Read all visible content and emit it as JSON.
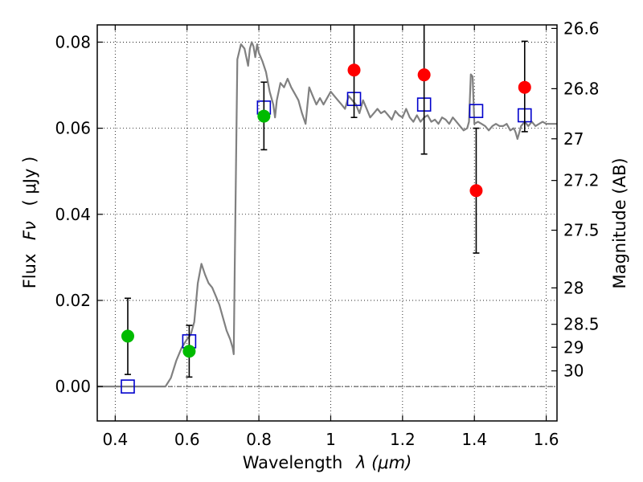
{
  "chart_data": {
    "type": "scatter",
    "xlabel_text": "Wavelength",
    "xlabel_math": "λ (μm)",
    "ylabel_text": "Flux",
    "ylabel_math": "Fν",
    "ylabel_unit": "( μJy )",
    "y2label": "Magnitude (AB)",
    "xlim": [
      0.35,
      1.63
    ],
    "ylim": [
      -0.008,
      0.084
    ],
    "x_ticks": [
      {
        "v": 0.4,
        "label": "0.4"
      },
      {
        "v": 0.6,
        "label": "0.6"
      },
      {
        "v": 0.8,
        "label": "0.8"
      },
      {
        "v": 1.0,
        "label": "1"
      },
      {
        "v": 1.2,
        "label": "1.2"
      },
      {
        "v": 1.4,
        "label": "1.4"
      },
      {
        "v": 1.6,
        "label": "1.6"
      }
    ],
    "y_ticks": [
      {
        "v": 0.0,
        "label": "0.00"
      },
      {
        "v": 0.02,
        "label": "0.02"
      },
      {
        "v": 0.04,
        "label": "0.04"
      },
      {
        "v": 0.06,
        "label": "0.06"
      },
      {
        "v": 0.08,
        "label": "0.08"
      }
    ],
    "mag_ticks": [
      {
        "mag": 26.6,
        "label": "26.6"
      },
      {
        "mag": 26.8,
        "label": "26.8"
      },
      {
        "mag": 27.0,
        "label": "27"
      },
      {
        "mag": 27.2,
        "label": "27.2"
      },
      {
        "mag": 27.5,
        "label": "27.5"
      },
      {
        "mag": 28.0,
        "label": "28"
      },
      {
        "mag": 28.5,
        "label": "28.5"
      },
      {
        "mag": 29.0,
        "label": "29"
      },
      {
        "mag": 30.0,
        "label": "30"
      }
    ],
    "grid": true,
    "colors": {
      "model": "#808080",
      "model_photometry": "#0000cc",
      "optical_points": "#00bb00",
      "nir_points": "#ff0000",
      "errorbar": "#000000"
    },
    "model_spectrum": [
      [
        0.35,
        0.0
      ],
      [
        0.54,
        0.0
      ],
      [
        0.555,
        0.002
      ],
      [
        0.57,
        0.006
      ],
      [
        0.585,
        0.009
      ],
      [
        0.6,
        0.011
      ],
      [
        0.61,
        0.012
      ],
      [
        0.62,
        0.015
      ],
      [
        0.63,
        0.024
      ],
      [
        0.64,
        0.0285
      ],
      [
        0.65,
        0.026
      ],
      [
        0.66,
        0.024
      ],
      [
        0.67,
        0.023
      ],
      [
        0.68,
        0.021
      ],
      [
        0.69,
        0.019
      ],
      [
        0.7,
        0.016
      ],
      [
        0.71,
        0.013
      ],
      [
        0.72,
        0.011
      ],
      [
        0.727,
        0.009
      ],
      [
        0.73,
        0.0075
      ],
      [
        0.733,
        0.03
      ],
      [
        0.74,
        0.076
      ],
      [
        0.75,
        0.0795
      ],
      [
        0.76,
        0.0785
      ],
      [
        0.77,
        0.0745
      ],
      [
        0.775,
        0.0785
      ],
      [
        0.78,
        0.08
      ],
      [
        0.785,
        0.079
      ],
      [
        0.79,
        0.0765
      ],
      [
        0.795,
        0.0795
      ],
      [
        0.8,
        0.0775
      ],
      [
        0.81,
        0.0755
      ],
      [
        0.82,
        0.073
      ],
      [
        0.83,
        0.0685
      ],
      [
        0.84,
        0.0655
      ],
      [
        0.845,
        0.0625
      ],
      [
        0.85,
        0.0665
      ],
      [
        0.86,
        0.0705
      ],
      [
        0.87,
        0.0695
      ],
      [
        0.88,
        0.0715
      ],
      [
        0.89,
        0.0695
      ],
      [
        0.9,
        0.068
      ],
      [
        0.91,
        0.0665
      ],
      [
        0.92,
        0.0635
      ],
      [
        0.93,
        0.061
      ],
      [
        0.94,
        0.0695
      ],
      [
        0.95,
        0.0675
      ],
      [
        0.96,
        0.0655
      ],
      [
        0.97,
        0.067
      ],
      [
        0.98,
        0.0655
      ],
      [
        0.99,
        0.067
      ],
      [
        1.0,
        0.0685
      ],
      [
        1.01,
        0.0675
      ],
      [
        1.02,
        0.0665
      ],
      [
        1.03,
        0.0655
      ],
      [
        1.04,
        0.0645
      ],
      [
        1.05,
        0.0675
      ],
      [
        1.06,
        0.0665
      ],
      [
        1.07,
        0.0655
      ],
      [
        1.08,
        0.0635
      ],
      [
        1.09,
        0.0665
      ],
      [
        1.1,
        0.0645
      ],
      [
        1.11,
        0.0625
      ],
      [
        1.12,
        0.0635
      ],
      [
        1.13,
        0.0645
      ],
      [
        1.14,
        0.0635
      ],
      [
        1.15,
        0.064
      ],
      [
        1.16,
        0.063
      ],
      [
        1.17,
        0.062
      ],
      [
        1.18,
        0.064
      ],
      [
        1.19,
        0.063
      ],
      [
        1.2,
        0.0625
      ],
      [
        1.21,
        0.0645
      ],
      [
        1.22,
        0.0625
      ],
      [
        1.23,
        0.0615
      ],
      [
        1.24,
        0.063
      ],
      [
        1.25,
        0.0615
      ],
      [
        1.26,
        0.0625
      ],
      [
        1.27,
        0.063
      ],
      [
        1.28,
        0.0615
      ],
      [
        1.29,
        0.062
      ],
      [
        1.3,
        0.061
      ],
      [
        1.31,
        0.0625
      ],
      [
        1.32,
        0.062
      ],
      [
        1.33,
        0.061
      ],
      [
        1.34,
        0.0625
      ],
      [
        1.35,
        0.0615
      ],
      [
        1.36,
        0.0605
      ],
      [
        1.37,
        0.0595
      ],
      [
        1.38,
        0.06
      ],
      [
        1.385,
        0.0615
      ],
      [
        1.39,
        0.0725
      ],
      [
        1.395,
        0.072
      ],
      [
        1.4,
        0.061
      ],
      [
        1.41,
        0.0615
      ],
      [
        1.42,
        0.061
      ],
      [
        1.43,
        0.0605
      ],
      [
        1.44,
        0.0595
      ],
      [
        1.45,
        0.0605
      ],
      [
        1.46,
        0.061
      ],
      [
        1.47,
        0.0605
      ],
      [
        1.48,
        0.0605
      ],
      [
        1.49,
        0.061
      ],
      [
        1.5,
        0.0595
      ],
      [
        1.51,
        0.06
      ],
      [
        1.515,
        0.059
      ],
      [
        1.52,
        0.0575
      ],
      [
        1.525,
        0.059
      ],
      [
        1.53,
        0.0605
      ],
      [
        1.54,
        0.0615
      ],
      [
        1.55,
        0.0605
      ],
      [
        1.56,
        0.0615
      ],
      [
        1.57,
        0.0605
      ],
      [
        1.58,
        0.061
      ],
      [
        1.59,
        0.0615
      ],
      [
        1.6,
        0.061
      ],
      [
        1.61,
        0.061
      ],
      [
        1.63,
        0.061
      ]
    ],
    "model_photometry": [
      {
        "x": 0.435,
        "y": 0.0
      },
      {
        "x": 0.606,
        "y": 0.0105
      },
      {
        "x": 0.814,
        "y": 0.0648
      },
      {
        "x": 1.065,
        "y": 0.0668
      },
      {
        "x": 1.26,
        "y": 0.0655
      },
      {
        "x": 1.405,
        "y": 0.064
      },
      {
        "x": 1.54,
        "y": 0.063
      }
    ],
    "observed_optical": [
      {
        "x": 0.435,
        "y": 0.0117,
        "ylo": 0.0028,
        "yhi": 0.0205
      },
      {
        "x": 0.606,
        "y": 0.0082,
        "ylo": 0.0022,
        "yhi": 0.0142
      },
      {
        "x": 0.814,
        "y": 0.0628,
        "ylo": 0.055,
        "yhi": 0.0707
      }
    ],
    "observed_nir": [
      {
        "x": 1.065,
        "y": 0.0735,
        "ylo": 0.0625,
        "yhi": 0.085
      },
      {
        "x": 1.26,
        "y": 0.0724,
        "ylo": 0.054,
        "yhi": 0.085
      },
      {
        "x": 1.405,
        "y": 0.0455,
        "ylo": 0.031,
        "yhi": 0.06
      },
      {
        "x": 1.54,
        "y": 0.0695,
        "ylo": 0.0592,
        "yhi": 0.0802
      }
    ]
  }
}
